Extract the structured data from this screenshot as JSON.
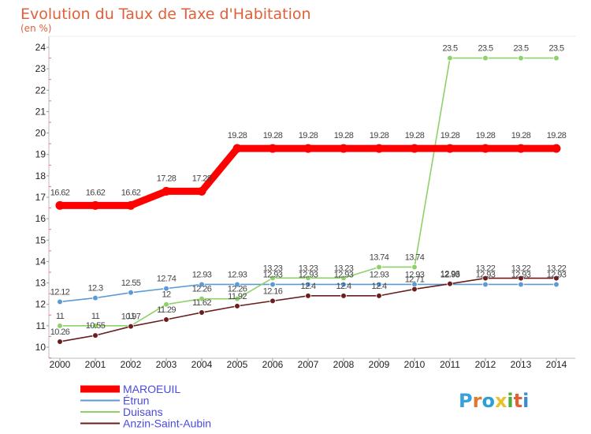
{
  "header": {
    "title": "Evolution du Taux de Taxe d'Habitation",
    "subtitle": "(en %)"
  },
  "logo": {
    "letters": [
      "P",
      "r",
      "o",
      "x",
      "i",
      "t",
      "i"
    ],
    "colors": [
      "#3aa0d8",
      "#e07a2a",
      "#2aa0d8",
      "#e8c22a",
      "#4cae3a",
      "#e0603a",
      "#3a8ad8"
    ]
  },
  "chart_data": {
    "type": "line",
    "title": "Evolution du Taux de Taxe d'Habitation",
    "subtitle": "(en %)",
    "x": [
      "2000",
      "2001",
      "2002",
      "2003",
      "2004",
      "2005",
      "2006",
      "2007",
      "2008",
      "2009",
      "2010",
      "2011",
      "2012",
      "2013",
      "2014"
    ],
    "ylim": [
      10,
      24
    ],
    "yticks": [
      10,
      11,
      12,
      13,
      14,
      15,
      16,
      17,
      18,
      19,
      20,
      21,
      22,
      23,
      24
    ],
    "grid": false,
    "legend_position": "bottom-left",
    "series": [
      {
        "name": "MAROEUIL",
        "color": "#ff0000",
        "values": [
          16.62,
          16.62,
          16.62,
          17.28,
          17.28,
          19.28,
          19.28,
          19.28,
          19.28,
          19.28,
          19.28,
          19.28,
          19.28,
          19.28,
          19.28
        ],
        "labels": [
          "16.62",
          "16.62",
          "16.62",
          "17.28",
          "17.28",
          "19.28",
          "19.28",
          "19.28",
          "19.28",
          "19.28",
          "19.28",
          "19.28",
          "19.28",
          "19.28",
          "19.28"
        ]
      },
      {
        "name": "Étrun",
        "color": "#5b9bd5",
        "values": [
          12.12,
          12.3,
          12.55,
          12.74,
          12.93,
          12.93,
          12.93,
          12.93,
          12.93,
          12.93,
          12.93,
          12.93,
          12.93,
          12.93,
          12.93
        ],
        "labels": [
          "12.12",
          "12.3",
          "12.55",
          "12.74",
          "12.93",
          "12.93",
          "12.93",
          "12.93",
          "12.93",
          "12.93",
          "12.93",
          "12.93",
          "12.93",
          "12.93",
          "12.93"
        ]
      },
      {
        "name": "Duisans",
        "color": "#8ed16b",
        "values": [
          11,
          11,
          11,
          12,
          12.26,
          12.26,
          13.23,
          13.23,
          13.23,
          13.74,
          13.74,
          23.5,
          23.5,
          23.5,
          23.5
        ],
        "labels": [
          "11",
          "11",
          "11",
          "12",
          "12.26",
          "12.26",
          "13.23",
          "13.23",
          "13.23",
          "13.74",
          "13.74",
          "23.5",
          "23.5",
          "23.5",
          "23.5"
        ]
      },
      {
        "name": "Anzin-Saint-Aubin",
        "color": "#6b1e1e",
        "values": [
          10.26,
          10.55,
          10.97,
          11.29,
          11.62,
          11.92,
          12.16,
          12.4,
          12.4,
          12.4,
          12.71,
          12.96,
          13.22,
          13.22,
          13.22
        ],
        "labels": [
          "10.26",
          "10.55",
          "10.97",
          "11.29",
          "11.62",
          "11.92",
          "12.16",
          "12.4",
          "12.4",
          "12.4",
          "12.71",
          "12.96",
          "13.22",
          "13.22",
          "13.22"
        ]
      }
    ]
  }
}
